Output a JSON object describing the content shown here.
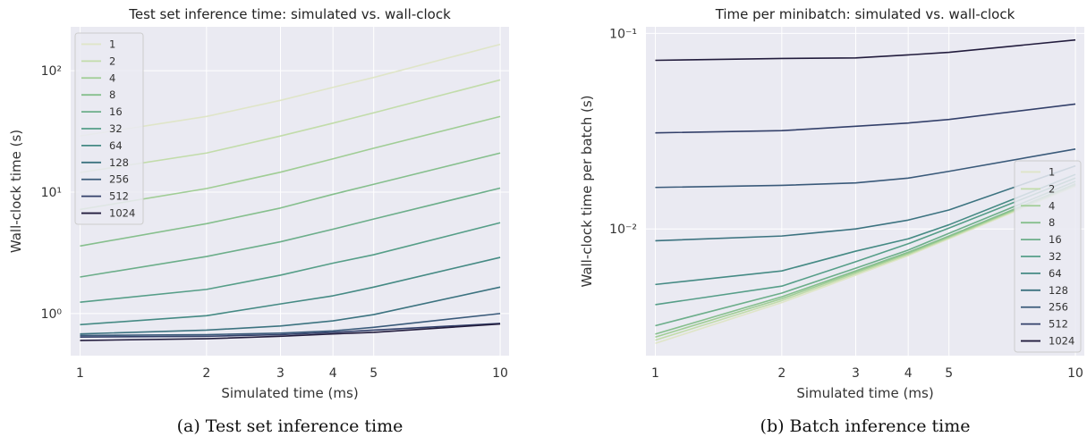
{
  "chart_data": [
    {
      "type": "line",
      "title": "Test set inference time: simulated vs. wall-clock",
      "caption": "(a) Test set inference time",
      "xlabel": "Simulated time (ms)",
      "ylabel": "Wall-clock time (s)",
      "xscale": "log",
      "yscale": "log",
      "xlim": [
        0.95,
        10.5
      ],
      "ylim": [
        0.45,
        230
      ],
      "x": [
        1,
        2,
        3,
        4,
        5,
        10
      ],
      "x_ticks": [
        1,
        2,
        3,
        4,
        5,
        10
      ],
      "x_tick_labels": [
        "1",
        "2",
        "3",
        "4",
        "5",
        "10"
      ],
      "y_ticks": [
        1,
        10,
        100
      ],
      "y_tick_labels": [
        "10⁰",
        "10¹",
        "10²"
      ],
      "grid": true,
      "legend_position": "upper-left",
      "series": [
        {
          "name": "1",
          "color": "#dfe5c8",
          "values": [
            29,
            42,
            57,
            73,
            88,
            165
          ]
        },
        {
          "name": "2",
          "color": "#c2dcaa",
          "values": [
            14.5,
            21,
            29,
            37,
            45,
            84
          ]
        },
        {
          "name": "4",
          "color": "#a0cd95",
          "values": [
            7.2,
            10.7,
            14.6,
            18.8,
            23,
            42
          ]
        },
        {
          "name": "8",
          "color": "#86bf8d",
          "values": [
            3.6,
            5.5,
            7.4,
            9.6,
            11.6,
            21
          ]
        },
        {
          "name": "16",
          "color": "#6cae8a",
          "values": [
            2.0,
            2.95,
            3.9,
            4.95,
            6.0,
            10.8
          ]
        },
        {
          "name": "32",
          "color": "#569e88",
          "values": [
            1.24,
            1.58,
            2.07,
            2.6,
            3.05,
            5.6
          ]
        },
        {
          "name": "64",
          "color": "#458a84",
          "values": [
            0.81,
            0.96,
            1.2,
            1.4,
            1.65,
            2.9
          ]
        },
        {
          "name": "128",
          "color": "#3c7380",
          "values": [
            0.68,
            0.73,
            0.79,
            0.87,
            0.98,
            1.65
          ]
        },
        {
          "name": "256",
          "color": "#3a5a7a",
          "values": [
            0.66,
            0.67,
            0.69,
            0.72,
            0.77,
            1.0
          ]
        },
        {
          "name": "512",
          "color": "#33406a",
          "values": [
            0.64,
            0.65,
            0.67,
            0.7,
            0.73,
            0.83
          ]
        },
        {
          "name": "1024",
          "color": "#221c3d",
          "values": [
            0.6,
            0.62,
            0.65,
            0.68,
            0.7,
            0.82
          ]
        }
      ]
    },
    {
      "type": "line",
      "title": "Time per minibatch: simulated vs. wall-clock",
      "caption": "(b) Batch inference time",
      "xlabel": "Simulated time (ms)",
      "ylabel": "Wall-clock time per batch (s)",
      "xscale": "log",
      "yscale": "log",
      "xlim": [
        0.95,
        10.5
      ],
      "ylim": [
        0.00225,
        0.108
      ],
      "x": [
        1,
        2,
        3,
        4,
        5,
        10
      ],
      "x_ticks": [
        1,
        2,
        3,
        4,
        5,
        10
      ],
      "x_tick_labels": [
        "1",
        "2",
        "3",
        "4",
        "5",
        "10"
      ],
      "y_ticks": [
        0.01,
        0.1
      ],
      "y_tick_labels": [
        "10⁻²",
        "10⁻¹"
      ],
      "grid": true,
      "legend_position": "lower-right",
      "series": [
        {
          "name": "1",
          "color": "#dfe5c8",
          "values": [
            0.0026,
            0.0042,
            0.0058,
            0.0073,
            0.0089,
            0.0165
          ]
        },
        {
          "name": "2",
          "color": "#c2dcaa",
          "values": [
            0.0027,
            0.0043,
            0.0059,
            0.0074,
            0.009,
            0.0167
          ]
        },
        {
          "name": "4",
          "color": "#a0cd95",
          "values": [
            0.0028,
            0.0044,
            0.006,
            0.0075,
            0.0091,
            0.0168
          ]
        },
        {
          "name": "8",
          "color": "#86bf8d",
          "values": [
            0.0029,
            0.0045,
            0.0061,
            0.0076,
            0.0092,
            0.017
          ]
        },
        {
          "name": "16",
          "color": "#6cae8a",
          "values": [
            0.0032,
            0.0047,
            0.0063,
            0.0078,
            0.0095,
            0.0175
          ]
        },
        {
          "name": "32",
          "color": "#569e88",
          "values": [
            0.0041,
            0.0051,
            0.0068,
            0.0084,
            0.0101,
            0.0182
          ]
        },
        {
          "name": "64",
          "color": "#458a84",
          "values": [
            0.0052,
            0.0061,
            0.0077,
            0.0089,
            0.0105,
            0.019
          ]
        },
        {
          "name": "128",
          "color": "#3c7380",
          "values": [
            0.0087,
            0.0092,
            0.01,
            0.0111,
            0.0125,
            0.021
          ]
        },
        {
          "name": "256",
          "color": "#3a5a7a",
          "values": [
            0.0163,
            0.0167,
            0.0172,
            0.0182,
            0.0197,
            0.0256
          ]
        },
        {
          "name": "512",
          "color": "#33406a",
          "values": [
            0.031,
            0.0318,
            0.0335,
            0.0348,
            0.0363,
            0.0435
          ]
        },
        {
          "name": "1024",
          "color": "#221c3d",
          "values": [
            0.0728,
            0.0744,
            0.0749,
            0.0776,
            0.08,
            0.0925
          ]
        }
      ]
    }
  ]
}
